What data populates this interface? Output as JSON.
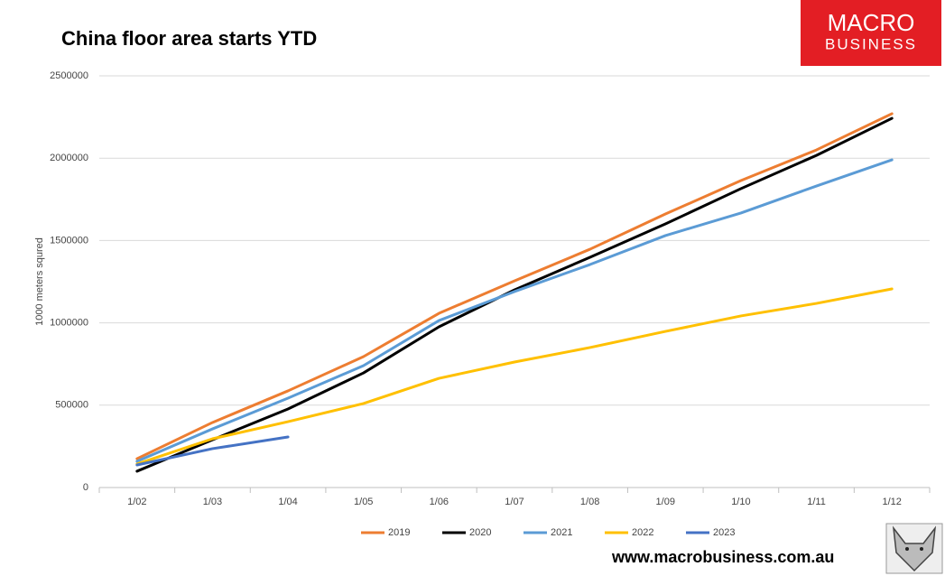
{
  "chart_data": {
    "type": "line",
    "title": "China floor area starts YTD",
    "y_label": "1000 meters squred",
    "categories": [
      "1/02",
      "1/03",
      "1/04",
      "1/05",
      "1/06",
      "1/07",
      "1/08",
      "1/09",
      "1/10",
      "1/11",
      "1/12"
    ],
    "series": [
      {
        "name": "2019",
        "color": "#ED7D31",
        "values": [
          175000,
          395000,
          587000,
          795000,
          1058000,
          1255000,
          1447000,
          1661000,
          1864000,
          2050000,
          2270000
        ]
      },
      {
        "name": "2020",
        "color": "#000000",
        "values": [
          99000,
          290000,
          477000,
          696000,
          976000,
          1200000,
          1398000,
          1601000,
          1815000,
          2017000,
          2242000
        ]
      },
      {
        "name": "2021",
        "color": "#5B9BD5",
        "values": [
          159000,
          356000,
          543000,
          740000,
          1014000,
          1190000,
          1354000,
          1530000,
          1667000,
          1831000,
          1990000
        ]
      },
      {
        "name": "2022",
        "color": "#FFC000",
        "values": [
          143000,
          296000,
          400000,
          510000,
          663000,
          762000,
          850000,
          948000,
          1042000,
          1118000,
          1206000
        ]
      },
      {
        "name": "2023",
        "color": "#4472C4",
        "values": [
          137000,
          236000,
          307000,
          null,
          null,
          null,
          null,
          null,
          null,
          null,
          null
        ]
      }
    ],
    "ylim": [
      0,
      2500000
    ],
    "yticks": [
      0,
      500000,
      1000000,
      1500000,
      2000000,
      2500000
    ],
    "grid": true,
    "legend": "bottom"
  },
  "branding": {
    "logo_line1": "MACRO",
    "logo_line2": "BUSINESS",
    "website": "www.macrobusiness.com.au"
  }
}
